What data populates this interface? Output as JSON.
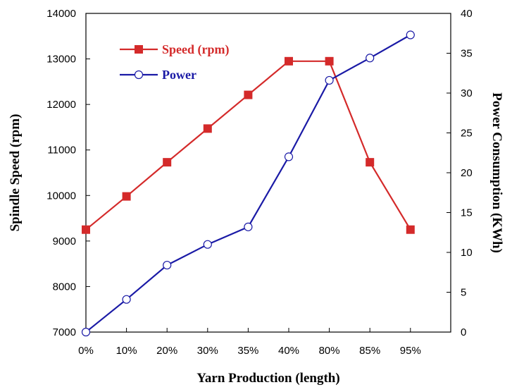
{
  "chart_data": {
    "type": "line",
    "title": "",
    "categories": [
      "0%",
      "10%",
      "20%",
      "30%",
      "35%",
      "40%",
      "80%",
      "85%",
      "95%"
    ],
    "xlabel": "Yarn Production (length)",
    "ylabel": "Spindle Speed (rpm)",
    "y2label": "Power Consumption (KWh)",
    "ylim": [
      7000,
      14000
    ],
    "y2lim": [
      0,
      40
    ],
    "yticks": [
      "7000",
      "8000",
      "9000",
      "10000",
      "11000",
      "12000",
      "13000",
      "14000"
    ],
    "y2ticks": [
      "0",
      "5",
      "10",
      "15",
      "20",
      "25",
      "30",
      "35",
      "40"
    ],
    "legend_position": "top-left",
    "series": [
      {
        "name": "Speed (rpm)",
        "axis": "left",
        "color": "#d42a2a",
        "marker": "square",
        "values": [
          9250,
          9980,
          10730,
          11470,
          12210,
          12950,
          12950,
          10730,
          9250
        ]
      },
      {
        "name": "Power",
        "axis": "right",
        "color": "#1a1aa6",
        "marker": "circle",
        "values": [
          0,
          4.1,
          8.4,
          11.0,
          13.2,
          22.0,
          31.6,
          34.4,
          37.3
        ]
      }
    ]
  }
}
